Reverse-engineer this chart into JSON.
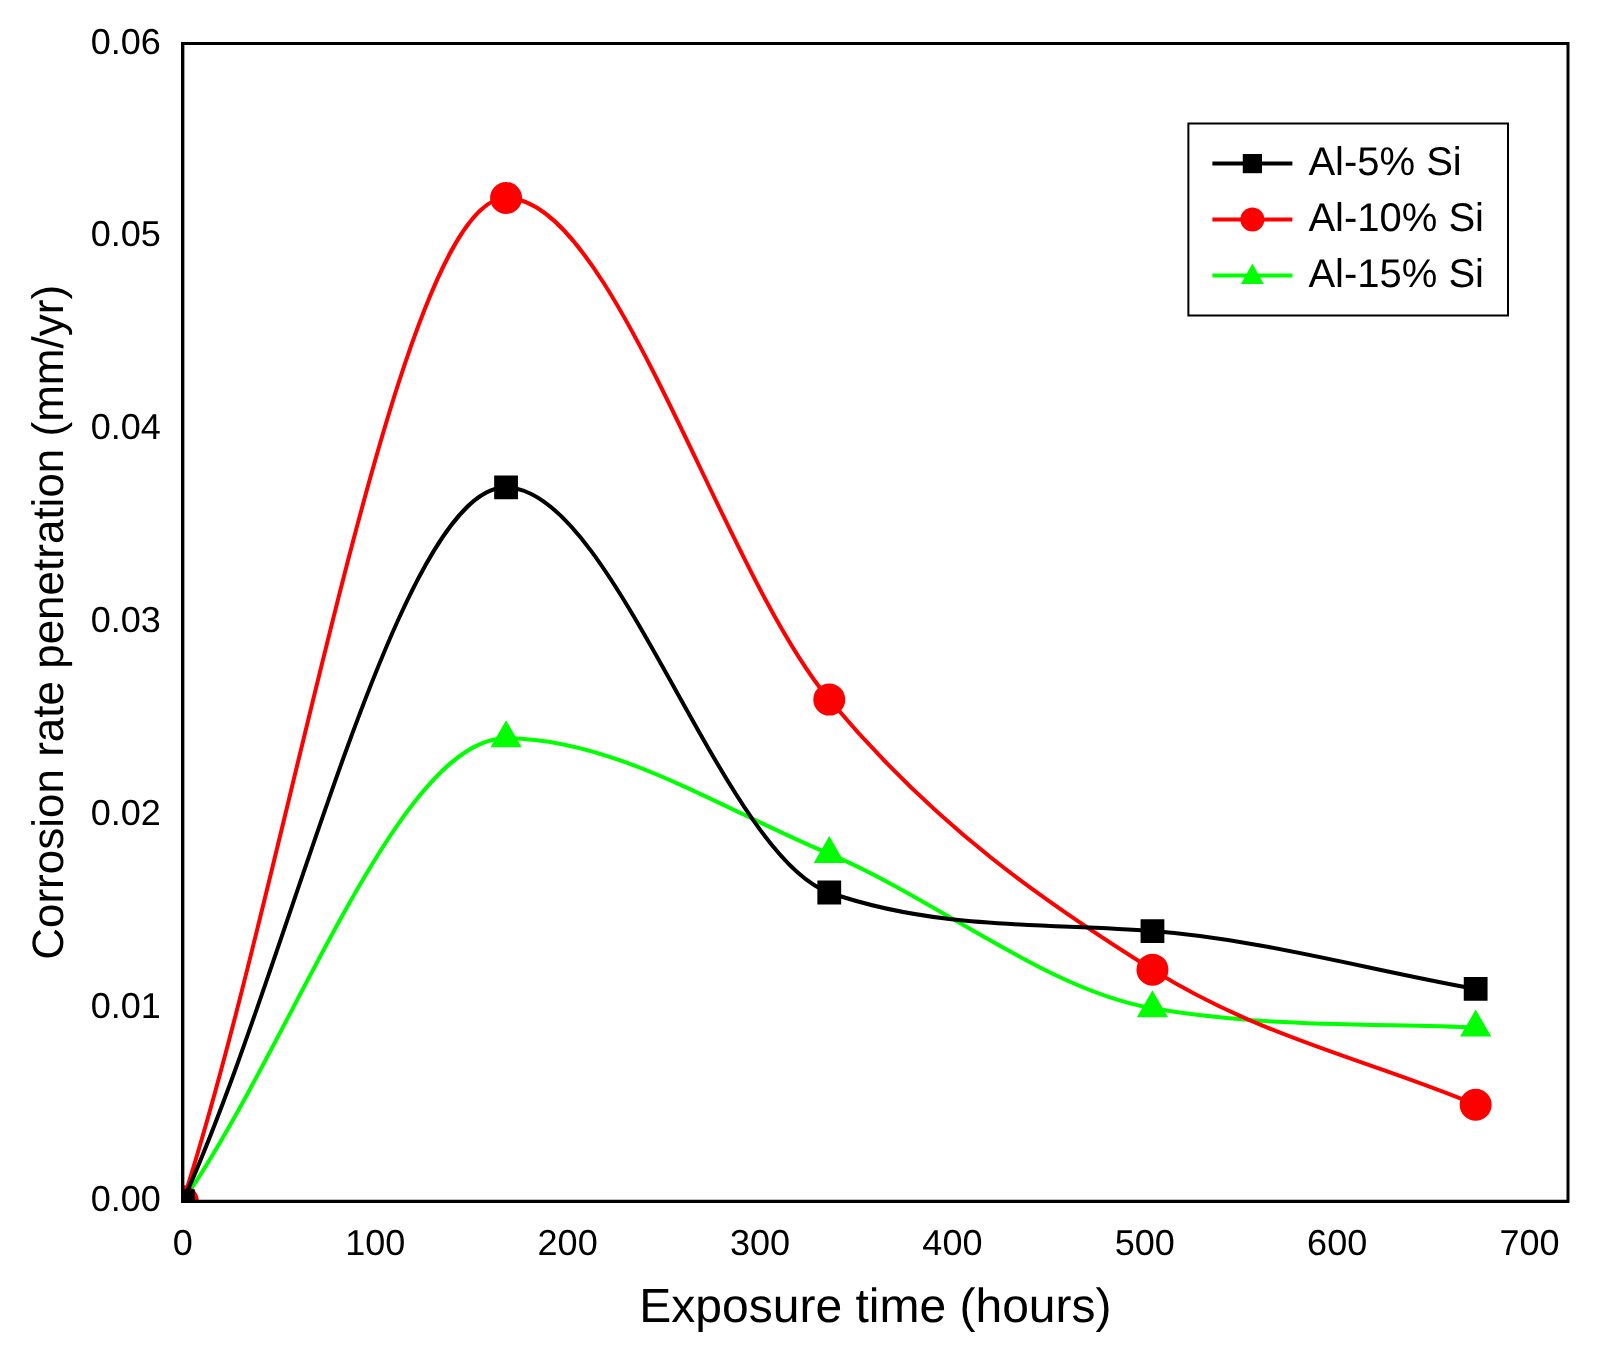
{
  "chart_data": {
    "type": "line",
    "xlabel": "Exposure time (hours)",
    "ylabel": "Corrosion rate penetration (mm/yr)",
    "x": [
      0,
      168,
      336,
      504,
      672
    ],
    "series": [
      {
        "name": "Al-5% Si",
        "color": "#000000",
        "marker": "square",
        "values": [
          0,
          0.037,
          0.016,
          0.014,
          0.011
        ]
      },
      {
        "name": "Al-10% Si",
        "color": "#ff0000",
        "marker": "circle",
        "values": [
          0,
          0.052,
          0.026,
          0.012,
          0.005
        ]
      },
      {
        "name": "Al-15% Si",
        "color": "#00ff00",
        "marker": "triangle",
        "values": [
          0,
          0.024,
          0.018,
          0.01,
          0.009
        ]
      }
    ],
    "xlim": [
      0,
      720
    ],
    "xticks": [
      0,
      100,
      200,
      300,
      400,
      500,
      600,
      700
    ],
    "ylim": [
      0,
      0.06
    ],
    "yticks": [
      {
        "value": 0,
        "label": "0.00"
      },
      {
        "value": 0.01,
        "label": "0.01"
      },
      {
        "value": 0.02,
        "label": "0.02"
      },
      {
        "value": 0.03,
        "label": "0.03"
      },
      {
        "value": 0.04,
        "label": "0.04"
      },
      {
        "value": 0.05,
        "label": "0.05"
      },
      {
        "value": 0.06,
        "label": "0.06"
      }
    ],
    "grid": false,
    "legend": "top right"
  }
}
